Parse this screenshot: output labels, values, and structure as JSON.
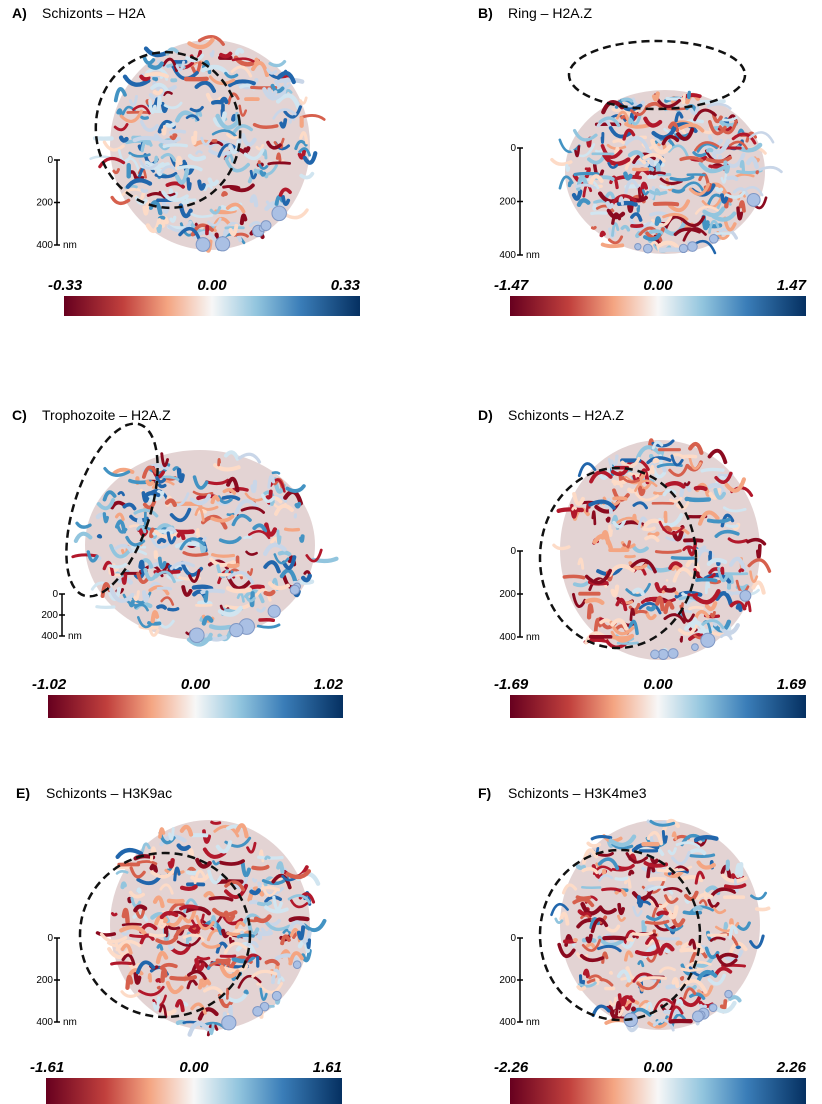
{
  "panels": [
    {
      "label": "A)",
      "title": "Schizonts – H2A",
      "scale_ticks": [
        "0",
        "200",
        "400"
      ],
      "scale_unit": "nm",
      "colorbar": [
        "-0.33",
        "0.00",
        "0.33"
      ]
    },
    {
      "label": "B)",
      "title": "Ring – H2A.Z",
      "scale_ticks": [
        "0",
        "200",
        "400"
      ],
      "scale_unit": "nm",
      "colorbar": [
        "-1.47",
        "0.00",
        "1.47"
      ]
    },
    {
      "label": "C)",
      "title": "Trophozoite – H2A.Z",
      "scale_ticks": [
        "0",
        "200",
        "400"
      ],
      "scale_unit": "nm",
      "colorbar": [
        "-1.02",
        "0.00",
        "1.02"
      ]
    },
    {
      "label": "D)",
      "title": "Schizonts – H2A.Z",
      "scale_ticks": [
        "0",
        "200",
        "400"
      ],
      "scale_unit": "nm",
      "colorbar": [
        "-1.69",
        "0.00",
        "1.69"
      ]
    },
    {
      "label": "E)",
      "title": "Schizonts – H3K9ac",
      "scale_ticks": [
        "0",
        "200",
        "400"
      ],
      "scale_unit": "nm",
      "colorbar": [
        "-1.61",
        "0.00",
        "1.61"
      ]
    },
    {
      "label": "F)",
      "title": "Schizonts – H3K4me3",
      "scale_ticks": [
        "0",
        "200",
        "400"
      ],
      "scale_unit": "nm",
      "colorbar": [
        "-2.26",
        "0.00",
        "2.26"
      ]
    }
  ]
}
